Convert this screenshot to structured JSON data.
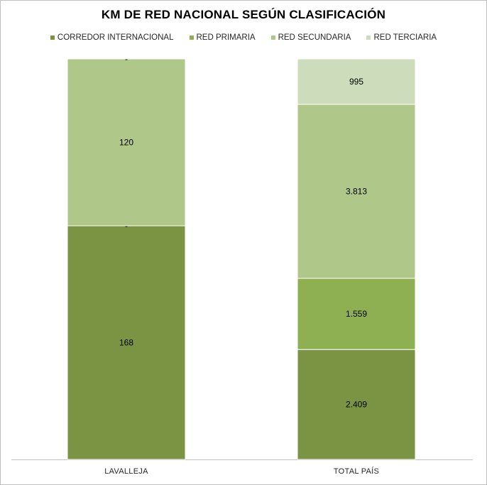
{
  "chart_data": {
    "type": "bar",
    "stacked": true,
    "title": "KM DE RED NACIONAL SEGÚN CLASIFICACIÓN",
    "categories": [
      "LAVALLEJA",
      "TOTAL PAÍS"
    ],
    "series": [
      {
        "name": "CORREDOR INTERNACIONAL",
        "color": "#7a9444",
        "values": [
          168,
          2409
        ],
        "labels": [
          "168",
          "2.409"
        ]
      },
      {
        "name": "RED PRIMARIA",
        "color": "#8faf53",
        "values": [
          0,
          1559
        ],
        "labels": [
          "-",
          "1.559"
        ]
      },
      {
        "name": "RED SECUNDARIA",
        "color": "#afc789",
        "values": [
          120,
          3813
        ],
        "labels": [
          "120",
          "3.813"
        ]
      },
      {
        "name": "RED TERCIARIA",
        "color": "#cddcba",
        "values": [
          0,
          995
        ],
        "labels": [
          "-",
          "995"
        ]
      }
    ],
    "normalized": true,
    "legend_position": "top",
    "grid": false
  }
}
